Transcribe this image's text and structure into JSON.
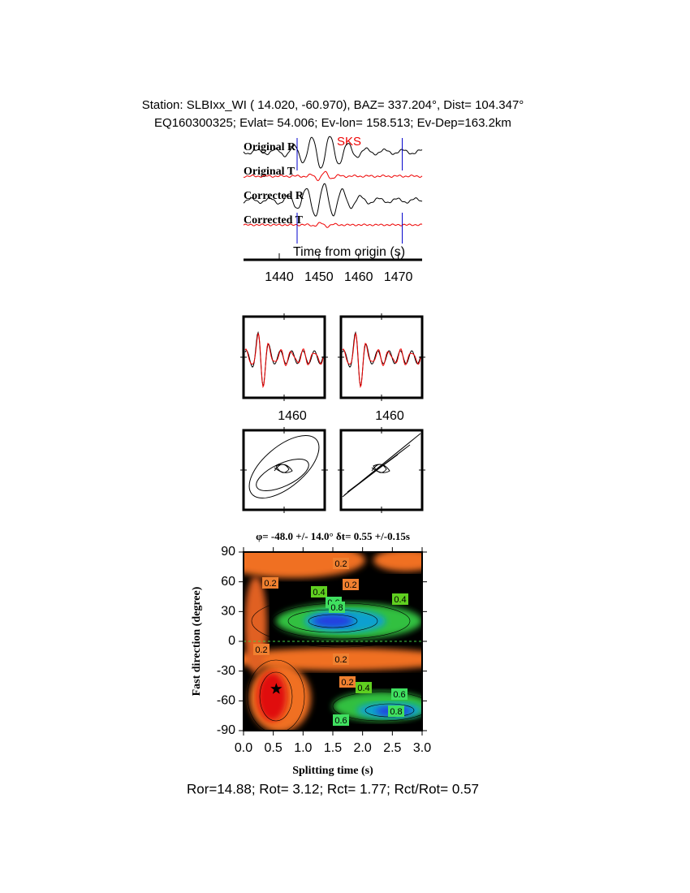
{
  "header": {
    "line1": "Station: SLBIxx_WI ( 14.020,  -60.970), BAZ=  337.204°, Dist=  104.347°",
    "line2": "EQ160300325; Evlat=  54.006; Ev-lon= 158.513; Ev-Dep=163.2km"
  },
  "waveforms": {
    "traces": [
      "Original R",
      "Original T",
      "Corrected R",
      "Corrected T"
    ],
    "phase": "SKS",
    "xlabel": "Time from origin (s)",
    "xlim": [
      1431,
      1476
    ],
    "xticks": [
      1440,
      1450,
      1460,
      1470
    ],
    "window": [
      1444.5,
      1471
    ]
  },
  "comparison": {
    "xlim": [
      1450,
      1470
    ],
    "xticks": [
      1460
    ]
  },
  "splitting": {
    "type": "contour",
    "title": "φ= -48.0 +/- 14.0° δt= 0.55 +/-0.15s",
    "xlabel": "Splitting time (s)",
    "ylabel": "Fast direction (degree)",
    "xlim": [
      0,
      3
    ],
    "ylim": [
      -90,
      90
    ],
    "xticks": [
      {
        "value": 0,
        "label": "0.0"
      },
      {
        "value": 0.5,
        "label": "0.5"
      },
      {
        "value": 1,
        "label": "1.0"
      },
      {
        "value": 1.5,
        "label": "1.5"
      },
      {
        "value": 2,
        "label": "2.0"
      },
      {
        "value": 2.5,
        "label": "2.5"
      },
      {
        "value": 3,
        "label": "3.0"
      }
    ],
    "yticks": [
      -90,
      -60,
      -30,
      0,
      30,
      60,
      90
    ],
    "best": {
      "x": 0.55,
      "y": -48
    },
    "contour_labels": [
      0.2,
      0.2,
      0.4,
      0.2,
      0.6,
      0.4,
      0.8,
      0.2,
      0.2,
      0.4,
      0.6,
      0.6,
      0.8,
      0.2
    ]
  },
  "footer": "Ror=14.88; Rot= 3.12; Rct= 1.77; Rct/Rot= 0.57"
}
